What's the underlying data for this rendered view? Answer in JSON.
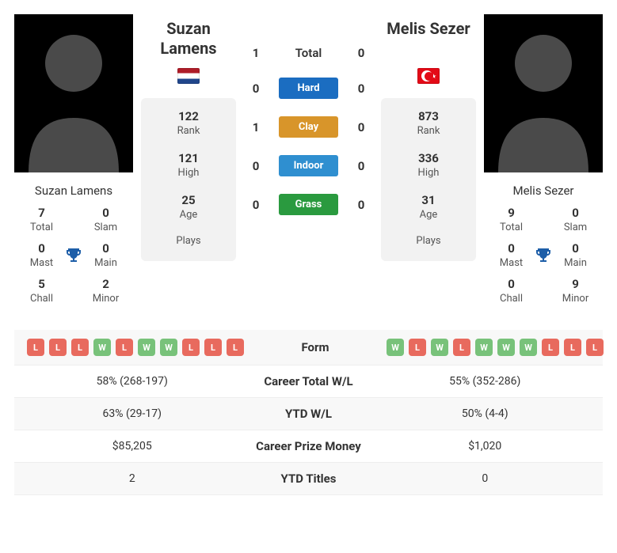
{
  "colors": {
    "win": "#78c27a",
    "loss": "#e86a5e",
    "hard": "#1b6dc1",
    "clay": "#d8952a",
    "indoor": "#2f8fd0",
    "grass": "#2a9a3f",
    "trophy": "#1d5ea8"
  },
  "h2h": {
    "total": {
      "label": "Total",
      "p1": 1,
      "p2": 0
    },
    "hard": {
      "label": "Hard",
      "p1": 0,
      "p2": 0,
      "color": "#1b6dc1"
    },
    "clay": {
      "label": "Clay",
      "p1": 1,
      "p2": 0,
      "color": "#d8952a"
    },
    "indoor": {
      "label": "Indoor",
      "p1": 0,
      "p2": 0,
      "color": "#2f8fd0"
    },
    "grass": {
      "label": "Grass",
      "p1": 0,
      "p2": 0,
      "color": "#2a9a3f"
    }
  },
  "player1": {
    "name": "Suzan\nLamens",
    "name_flat": "Suzan Lamens",
    "flag": "nl",
    "stats": {
      "rank": {
        "value": "122",
        "label": "Rank"
      },
      "high": {
        "value": "121",
        "label": "High"
      },
      "age": {
        "value": "25",
        "label": "Age"
      },
      "plays": {
        "value": "",
        "label": "Plays"
      }
    },
    "titles": {
      "total": {
        "value": "7",
        "label": "Total"
      },
      "slam": {
        "value": "0",
        "label": "Slam"
      },
      "mast": {
        "value": "0",
        "label": "Mast"
      },
      "main": {
        "value": "0",
        "label": "Main"
      },
      "chall": {
        "value": "5",
        "label": "Chall"
      },
      "minor": {
        "value": "2",
        "label": "Minor"
      }
    },
    "form": [
      "L",
      "L",
      "L",
      "W",
      "L",
      "W",
      "W",
      "L",
      "L",
      "L"
    ]
  },
  "player2": {
    "name": "Melis Sezer",
    "name_flat": "Melis Sezer",
    "flag": "tr",
    "stats": {
      "rank": {
        "value": "873",
        "label": "Rank"
      },
      "high": {
        "value": "336",
        "label": "High"
      },
      "age": {
        "value": "31",
        "label": "Age"
      },
      "plays": {
        "value": "",
        "label": "Plays"
      }
    },
    "titles": {
      "total": {
        "value": "9",
        "label": "Total"
      },
      "slam": {
        "value": "0",
        "label": "Slam"
      },
      "mast": {
        "value": "0",
        "label": "Mast"
      },
      "main": {
        "value": "0",
        "label": "Main"
      },
      "chall": {
        "value": "0",
        "label": "Chall"
      },
      "minor": {
        "value": "9",
        "label": "Minor"
      }
    },
    "form": [
      "W",
      "L",
      "W",
      "L",
      "W",
      "W",
      "W",
      "L",
      "L",
      "L"
    ]
  },
  "bottom": {
    "form": {
      "label": "Form"
    },
    "career_wl": {
      "label": "Career Total W/L",
      "p1": "58% (268-197)",
      "p2": "55% (352-286)"
    },
    "ytd_wl": {
      "label": "YTD W/L",
      "p1": "63% (29-17)",
      "p2": "50% (4-4)"
    },
    "prize": {
      "label": "Career Prize Money",
      "p1": "$85,205",
      "p2": "$1,020"
    },
    "ytd_titles": {
      "label": "YTD Titles",
      "p1": "2",
      "p2": "0"
    }
  }
}
